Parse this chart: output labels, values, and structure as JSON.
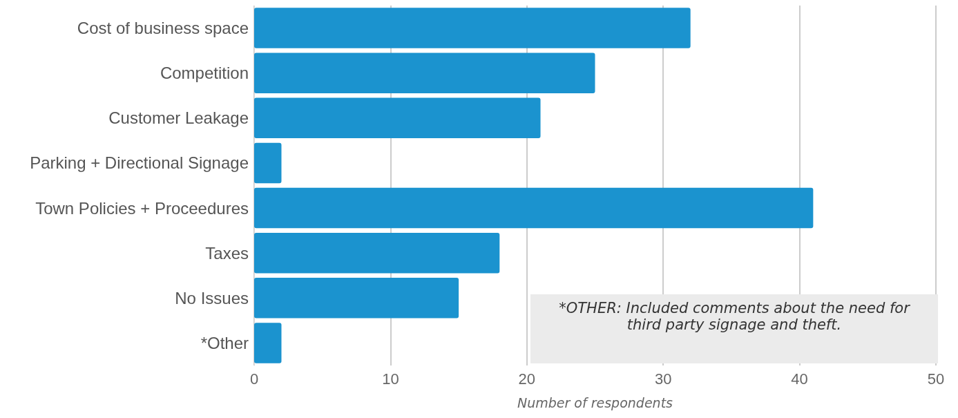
{
  "chart_data": {
    "type": "bar",
    "orientation": "horizontal",
    "xlabel": "Number of respondents",
    "categories": [
      "Cost of business space",
      "Competition",
      "Customer Leakage",
      "Parking + Directional Signage",
      "Town Policies + Proceedures",
      "Taxes",
      "No Issues",
      "*Other"
    ],
    "values": [
      32,
      25,
      21,
      2,
      41,
      18,
      15,
      2
    ],
    "color": "#1b93cf",
    "xlim": [
      0,
      50
    ],
    "xticks": [
      0,
      10,
      20,
      30,
      40,
      50
    ],
    "grid": "x",
    "annotations": [
      "*OTHER: Included comments about the need for third party signage and theft."
    ]
  }
}
